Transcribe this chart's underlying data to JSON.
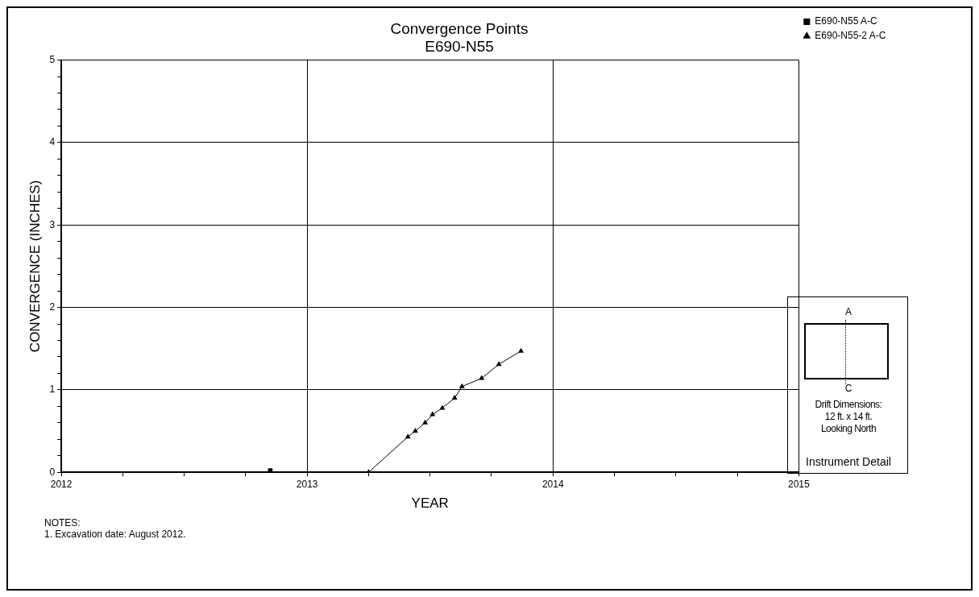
{
  "chart_data": {
    "type": "line",
    "title": "Convergence Points",
    "subtitle": "E690-N55",
    "xlabel": "YEAR",
    "ylabel": "CONVERGENCE (INCHES)",
    "xlim": [
      2012,
      2015
    ],
    "xticks": [
      2012,
      {
        "value": 2012.25,
        "label": null
      },
      {
        "value": 2012.5,
        "label": null
      },
      {
        "value": 2012.75,
        "label": null
      },
      2013,
      {
        "value": 2013.25,
        "label": null
      },
      {
        "value": 2013.5,
        "label": null
      },
      {
        "value": 2013.75,
        "label": null
      },
      2014,
      {
        "value": 2014.25,
        "label": null
      },
      {
        "value": 2014.5,
        "label": null
      },
      {
        "value": 2014.75,
        "label": null
      },
      2015
    ],
    "ylim": [
      0,
      5
    ],
    "yticks": [
      0,
      {
        "value": 0.2,
        "label": null
      },
      {
        "value": 0.4,
        "label": null
      },
      {
        "value": 0.6,
        "label": null
      },
      {
        "value": 0.8,
        "label": null
      },
      1,
      {
        "value": 1.2,
        "label": null
      },
      {
        "value": 1.4,
        "label": null
      },
      {
        "value": 1.6,
        "label": null
      },
      {
        "value": 1.8,
        "label": null
      },
      2,
      {
        "value": 2.2,
        "label": null
      },
      {
        "value": 2.4,
        "label": null
      },
      {
        "value": 2.6,
        "label": null
      },
      {
        "value": 2.8,
        "label": null
      },
      3,
      {
        "value": 3.2,
        "label": null
      },
      {
        "value": 3.4,
        "label": null
      },
      {
        "value": 3.6,
        "label": null
      },
      {
        "value": 3.8,
        "label": null
      },
      4,
      {
        "value": 4.2,
        "label": null
      },
      {
        "value": 4.4,
        "label": null
      },
      {
        "value": 4.6,
        "label": null
      },
      {
        "value": 4.8,
        "label": null
      },
      5
    ],
    "grid": true,
    "legend": "top right",
    "series": [
      {
        "name": "E690-N55 A-C",
        "color": "#000000",
        "marker": "square",
        "line_style": "dashed",
        "x": [
          2012.85
        ],
        "values": [
          0.02
        ]
      },
      {
        "name": "E690-N55-2 A-C",
        "color": "#000000",
        "marker": "triangle",
        "line_style": "solid",
        "x": [
          2013.25,
          2013.41,
          2013.44,
          2013.48,
          2013.51,
          2013.55,
          2013.6,
          2013.63,
          2013.71,
          2013.78,
          2013.87
        ],
        "values": [
          0,
          0.43,
          0.5,
          0.6,
          0.7,
          0.78,
          0.9,
          1.04,
          1.14,
          1.31,
          1.47
        ]
      }
    ],
    "annotations": [
      "NOTES:",
      "1. Excavation date: August 2012.",
      "A",
      "C",
      "Drift Dimensions:",
      "12 ft. x 14 ft.",
      "Looking North",
      "Instrument Detail"
    ]
  }
}
